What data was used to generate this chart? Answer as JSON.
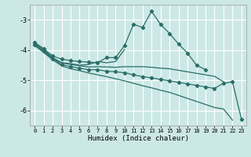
{
  "xlabel": "Humidex (Indice chaleur)",
  "background_color": "#cce8e6",
  "grid_color": "#ffffff",
  "line_color": "#2a6e68",
  "xlim": [
    -0.5,
    23.5
  ],
  "ylim": [
    -6.5,
    -2.5
  ],
  "yticks": [
    -6,
    -5,
    -4,
    -3
  ],
  "xticks": [
    0,
    1,
    2,
    3,
    4,
    5,
    6,
    7,
    8,
    9,
    10,
    11,
    12,
    13,
    14,
    15,
    16,
    17,
    18,
    19,
    20,
    21,
    22,
    23
  ],
  "lines": [
    {
      "x": [
        0,
        1,
        2,
        3,
        4,
        5,
        6,
        7,
        8,
        9,
        10,
        11,
        12,
        13,
        14,
        15,
        16,
        17,
        18,
        19
      ],
      "y": [
        -3.75,
        -3.95,
        -4.2,
        -4.3,
        -4.35,
        -4.38,
        -4.4,
        -4.42,
        -4.25,
        -4.25,
        -3.85,
        -3.15,
        -3.25,
        -2.72,
        -3.15,
        -3.45,
        -3.8,
        -4.1,
        -4.5,
        -4.65
      ],
      "marker": true
    },
    {
      "x": [
        0,
        1,
        2,
        3,
        4,
        5,
        6,
        7,
        8,
        9,
        10
      ],
      "y": [
        -3.78,
        -3.98,
        -4.25,
        -4.42,
        -4.45,
        -4.5,
        -4.48,
        -4.38,
        -4.42,
        -4.38,
        -3.98
      ],
      "marker": false
    },
    {
      "x": [
        0,
        1,
        2,
        3,
        4,
        5,
        6,
        7,
        8,
        9,
        10,
        11,
        12,
        13,
        14,
        15,
        16,
        17,
        18,
        19,
        20,
        21
      ],
      "y": [
        -3.8,
        -4.05,
        -4.28,
        -4.42,
        -4.48,
        -4.52,
        -4.56,
        -4.55,
        -4.56,
        -4.57,
        -4.55,
        -4.55,
        -4.55,
        -4.57,
        -4.6,
        -4.62,
        -4.67,
        -4.72,
        -4.77,
        -4.82,
        -4.87,
        -5.05
      ],
      "marker": false
    },
    {
      "x": [
        0,
        1,
        2,
        3,
        4,
        5,
        6,
        7,
        8,
        9,
        10,
        11,
        12,
        13,
        14,
        15,
        16,
        17,
        18,
        19,
        20,
        21,
        22,
        23
      ],
      "y": [
        -3.82,
        -4.02,
        -4.28,
        -4.48,
        -4.55,
        -4.6,
        -4.65,
        -4.65,
        -4.7,
        -4.72,
        -4.75,
        -4.82,
        -4.88,
        -4.92,
        -4.97,
        -5.02,
        -5.07,
        -5.12,
        -5.17,
        -5.22,
        -5.27,
        -5.1,
        -5.05,
        -6.3
      ],
      "marker": true
    },
    {
      "x": [
        0,
        1,
        2,
        3,
        4,
        5,
        6,
        7,
        8,
        9,
        10,
        11,
        12,
        13,
        14,
        15,
        16,
        17,
        18,
        19,
        20,
        21,
        22
      ],
      "y": [
        -3.85,
        -4.08,
        -4.32,
        -4.52,
        -4.62,
        -4.68,
        -4.76,
        -4.82,
        -4.88,
        -4.95,
        -5.02,
        -5.1,
        -5.18,
        -5.25,
        -5.33,
        -5.4,
        -5.5,
        -5.6,
        -5.7,
        -5.8,
        -5.9,
        -5.95,
        -6.32
      ],
      "marker": false
    }
  ]
}
